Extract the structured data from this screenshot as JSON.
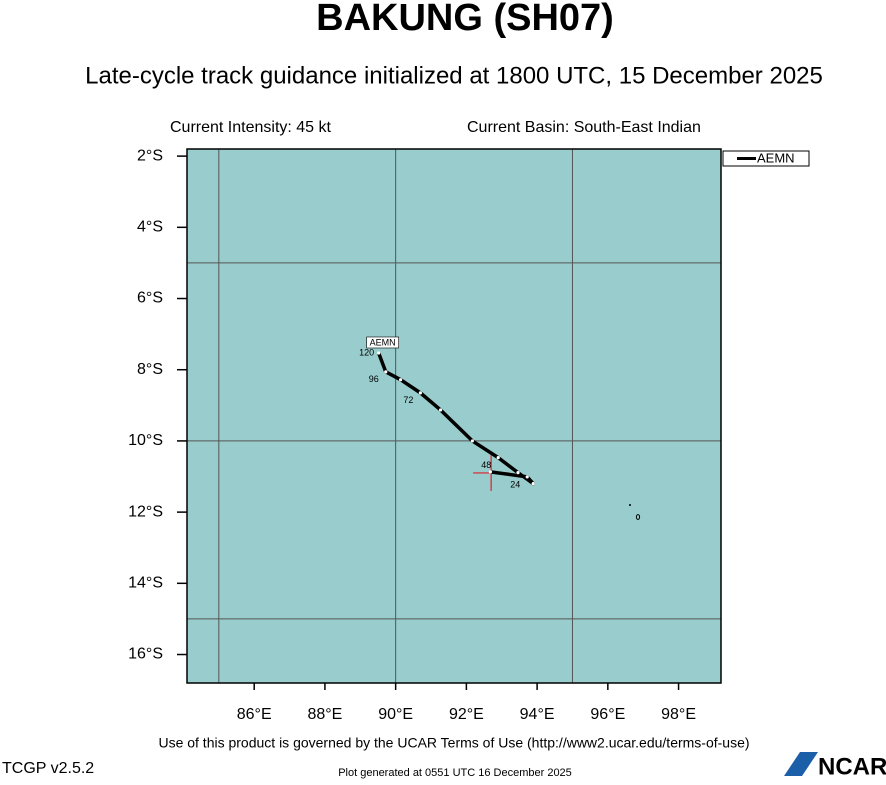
{
  "chart_data": {
    "type": "track",
    "title": "BAKUNG (SH07)",
    "subtitle": "Late-cycle track guidance initialized at 1800 UTC, 15 December 2025",
    "intensity": "Current Intensity: 45 kt",
    "basin": "Current Basin: South-East Indian",
    "footer": "Use of this product is governed by the UCAR Terms of Use (http://www2.ucar.edu/terms-of-use)",
    "version": "TCGP v2.5.2",
    "generated": "Plot generated at 0551 UTC   16 December 2025",
    "logo": "NCAR",
    "ocean_color": "#99cccc",
    "grid": true,
    "grid_lon": [
      85,
      90,
      95
    ],
    "grid_lat": [
      -5,
      -10,
      -15
    ],
    "xlim": [
      84.1,
      99.2
    ],
    "ylim": [
      -16.8,
      -1.8
    ],
    "xticks": [
      {
        "value": 86,
        "label": "86°E"
      },
      {
        "value": 88,
        "label": "88°E"
      },
      {
        "value": 90,
        "label": "90°E"
      },
      {
        "value": 92,
        "label": "92°E"
      },
      {
        "value": 94,
        "label": "94°E"
      },
      {
        "value": 96,
        "label": "96°E"
      },
      {
        "value": 98,
        "label": "98°E"
      }
    ],
    "yticks": [
      {
        "value": -2,
        "label": "2°S"
      },
      {
        "value": -4,
        "label": "4°S"
      },
      {
        "value": -6,
        "label": "6°S"
      },
      {
        "value": -8,
        "label": "8°S"
      },
      {
        "value": -10,
        "label": "10°S"
      },
      {
        "value": -12,
        "label": "12°S"
      },
      {
        "value": -14,
        "label": "14°S"
      },
      {
        "value": -16,
        "label": "16°S"
      }
    ],
    "current_position": {
      "x": 92.7,
      "y": -10.9
    },
    "legend": "upper right",
    "series": [
      {
        "name": "AEMN",
        "color": "#000000",
        "x": [
          92.68,
          93.72,
          93.89,
          93.46,
          92.9,
          92.17,
          91.27,
          90.7,
          90.14,
          89.72,
          89.52
        ],
        "values": [
          -10.87,
          -11.01,
          -11.2,
          -10.89,
          -10.47,
          -10.0,
          -9.13,
          -8.65,
          -8.28,
          -8.06,
          -7.53
        ],
        "labels": [
          null,
          "24",
          null,
          null,
          "48",
          null,
          null,
          "72",
          null,
          "96",
          "120"
        ]
      }
    ]
  }
}
